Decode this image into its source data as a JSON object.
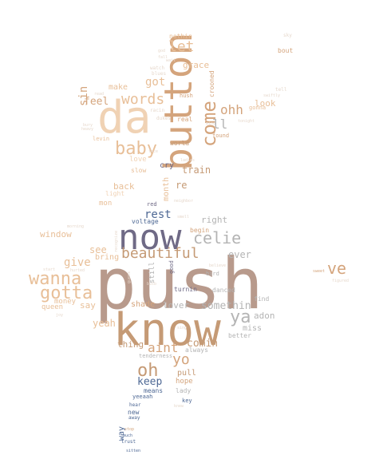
{
  "palette": {
    "light_peach": "#f0d2b4",
    "peach": "#e8bf98",
    "tan": "#d4a47c",
    "brown": "#c59a75",
    "taupe": "#b89a8c",
    "grey": "#b4b4b4",
    "slate": "#6f6a86",
    "blue": "#4e6894",
    "faint": "#e6d8cc"
  },
  "words": [
    {
      "text": "push",
      "color": "taupe"
    },
    {
      "text": "know",
      "color": "brown"
    },
    {
      "text": "da",
      "color": "light_peach"
    },
    {
      "text": "now",
      "color": "slate"
    },
    {
      "text": "button",
      "color": "tan"
    },
    {
      "text": "baby",
      "color": "peach"
    },
    {
      "text": "wanna",
      "color": "peach"
    },
    {
      "text": "gotta",
      "color": "peach"
    },
    {
      "text": "come",
      "color": "tan"
    },
    {
      "text": "beautiful",
      "color": "brown"
    },
    {
      "text": "celie",
      "color": "grey"
    },
    {
      "text": "words",
      "color": "peach"
    },
    {
      "text": "oh",
      "color": "brown"
    },
    {
      "text": "ya",
      "color": "grey"
    },
    {
      "text": "ve",
      "color": "tan"
    },
    {
      "text": "ohh",
      "color": "tan"
    },
    {
      "text": "let",
      "color": "peach"
    },
    {
      "text": "yo",
      "color": "tan"
    },
    {
      "text": "aint",
      "color": "tan"
    },
    {
      "text": "somethin",
      "color": "grey"
    },
    {
      "text": "comin",
      "color": "brown"
    },
    {
      "text": "rest",
      "color": "blue"
    },
    {
      "text": "keep",
      "color": "blue"
    },
    {
      "text": "give",
      "color": "peach"
    },
    {
      "text": "window",
      "color": "peach"
    },
    {
      "text": "got",
      "color": "peach"
    },
    {
      "text": "feel",
      "color": "tan"
    },
    {
      "text": "sin",
      "color": "tan"
    },
    {
      "text": "ll",
      "color": "grey"
    },
    {
      "text": "train",
      "color": "brown"
    },
    {
      "text": "right",
      "color": "grey"
    },
    {
      "text": "re",
      "color": "brown"
    },
    {
      "text": "ever",
      "color": "grey"
    },
    {
      "text": "see",
      "color": "peach"
    },
    {
      "text": "yeah",
      "color": "peach"
    },
    {
      "text": "adon",
      "color": "grey"
    },
    {
      "text": "thing",
      "color": "brown"
    },
    {
      "text": "lover",
      "color": "grey"
    },
    {
      "text": "grace",
      "color": "peach"
    },
    {
      "text": "make",
      "color": "peach"
    },
    {
      "text": "look",
      "color": "peach"
    },
    {
      "text": "month",
      "color": "peach"
    },
    {
      "text": "say",
      "color": "peach"
    },
    {
      "text": "back",
      "color": "peach"
    },
    {
      "text": "pull",
      "color": "brown"
    },
    {
      "text": "shade",
      "color": "tan"
    },
    {
      "text": "miss",
      "color": "grey"
    },
    {
      "text": "bring",
      "color": "peach"
    },
    {
      "text": "means",
      "color": "blue"
    },
    {
      "text": "money",
      "color": "peach"
    },
    {
      "text": "queen",
      "color": "peach"
    },
    {
      "text": "cry",
      "color": "slate"
    },
    {
      "text": "still",
      "color": "grey"
    },
    {
      "text": "love",
      "color": "light_peach"
    },
    {
      "text": "slow",
      "color": "peach"
    },
    {
      "text": "light",
      "color": "light_peach"
    },
    {
      "text": "mon",
      "color": "peach"
    },
    {
      "text": "begin",
      "color": "tan"
    },
    {
      "text": "voltage",
      "color": "blue"
    },
    {
      "text": "turnin",
      "color": "slate"
    },
    {
      "text": "danced",
      "color": "grey"
    },
    {
      "text": "hope",
      "color": "tan"
    },
    {
      "text": "lady",
      "color": "grey"
    },
    {
      "text": "always",
      "color": "grey"
    },
    {
      "text": "find",
      "color": "grey"
    },
    {
      "text": "better",
      "color": "grey"
    },
    {
      "text": "way",
      "color": "blue"
    },
    {
      "text": "new",
      "color": "blue"
    },
    {
      "text": "nothin",
      "color": "peach"
    },
    {
      "text": "bout",
      "color": "tan"
    },
    {
      "text": "crooned",
      "color": "tan"
    },
    {
      "text": "real",
      "color": "tan"
    },
    {
      "text": "world",
      "color": "brown"
    },
    {
      "text": "found",
      "color": "tan"
    },
    {
      "text": "levin",
      "color": "peach"
    },
    {
      "text": "gonna",
      "color": "peach"
    },
    {
      "text": "hush",
      "color": "tan"
    },
    {
      "text": "red",
      "color": "slate"
    },
    {
      "text": "bird",
      "color": "grey"
    },
    {
      "text": "good",
      "color": "slate"
    },
    {
      "text": "tenderness",
      "color": "grey"
    },
    {
      "text": "yeeaah",
      "color": "blue"
    },
    {
      "text": "key",
      "color": "blue"
    },
    {
      "text": "away",
      "color": "blue"
    },
    {
      "text": "hear",
      "color": "blue"
    },
    {
      "text": "trust",
      "color": "blue"
    },
    {
      "text": "much",
      "color": "blue"
    },
    {
      "text": "stop",
      "color": "tan"
    },
    {
      "text": "sky",
      "color": "faint"
    },
    {
      "text": "racin",
      "color": "faint"
    },
    {
      "text": "dukes",
      "color": "faint"
    },
    {
      "text": "watch",
      "color": "faint"
    },
    {
      "text": "blues",
      "color": "faint"
    },
    {
      "text": "morning",
      "color": "faint"
    },
    {
      "text": "tell",
      "color": "faint"
    },
    {
      "text": "start",
      "color": "faint"
    },
    {
      "text": "hurted",
      "color": "faint"
    },
    {
      "text": "sitten",
      "color": "blue"
    },
    {
      "text": "ladies",
      "color": "faint"
    },
    {
      "text": "neighbor",
      "color": "faint"
    },
    {
      "text": "smell",
      "color": "faint"
    },
    {
      "text": "sweet",
      "color": "tan"
    },
    {
      "text": "knew",
      "color": "faint"
    },
    {
      "text": "guess",
      "color": "faint"
    },
    {
      "text": "recognize",
      "color": "faint"
    },
    {
      "text": "figured",
      "color": "faint"
    },
    {
      "text": "god",
      "color": "faint"
    },
    {
      "text": "read",
      "color": "faint"
    },
    {
      "text": "wait",
      "color": "faint"
    },
    {
      "text": "believe",
      "color": "faint"
    },
    {
      "text": "joy",
      "color": "faint"
    },
    {
      "text": "bulb",
      "color": "faint"
    },
    {
      "text": "fall",
      "color": "faint"
    },
    {
      "text": "swiftly",
      "color": "faint"
    },
    {
      "text": "bury",
      "color": "faint"
    },
    {
      "text": "mind",
      "color": "faint"
    },
    {
      "text": "heavy",
      "color": "faint"
    },
    {
      "text": "tonight",
      "color": "faint"
    },
    {
      "text": "sing",
      "color": "faint"
    },
    {
      "text": "face",
      "color": "faint"
    }
  ]
}
